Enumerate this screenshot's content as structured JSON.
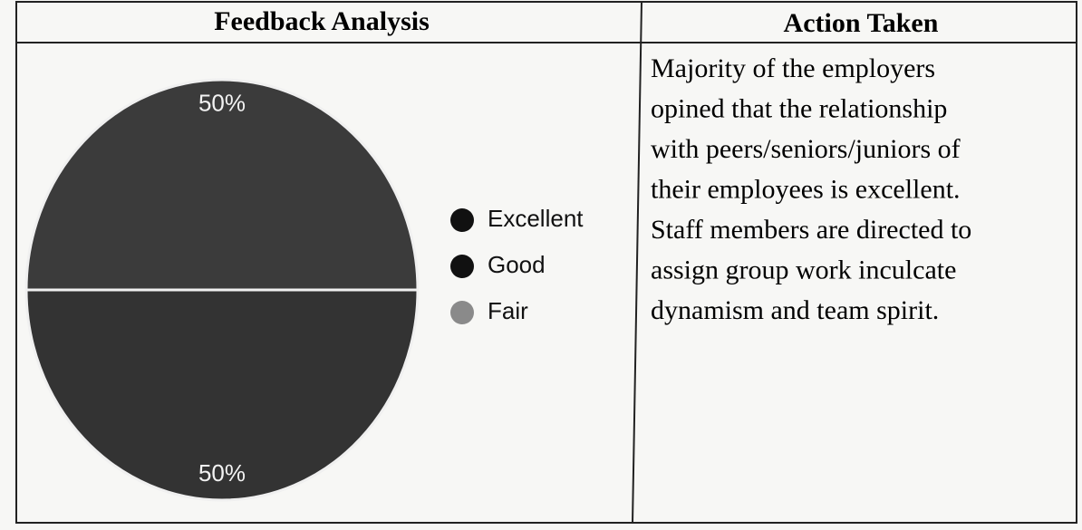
{
  "table": {
    "headers": [
      "Feedback Analysis",
      "Action Taken"
    ],
    "action_lines": [
      "Majority of the employers",
      "opined that the relationship",
      "with peers/seniors/juniors of",
      "their employees is excellent.",
      "Staff members are directed to",
      "assign group work inculcate",
      "dynamism and team spirit."
    ]
  },
  "chart_data": {
    "type": "pie",
    "categories": [
      "Excellent",
      "Good",
      "Fair"
    ],
    "values": [
      50,
      50,
      0
    ],
    "value_labels": [
      "50%",
      "50%",
      null
    ],
    "colors": [
      "#3b3b3b",
      "#333333",
      "#8a8a8a"
    ]
  }
}
